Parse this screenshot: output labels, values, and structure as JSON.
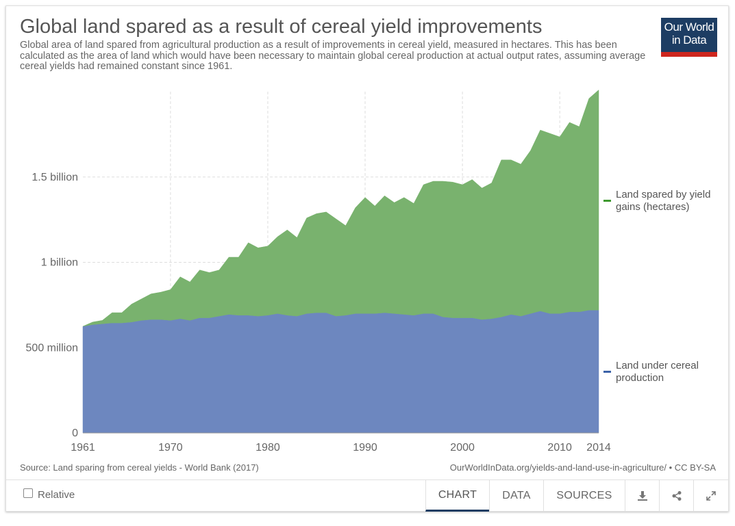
{
  "header": {
    "title": "Global land spared as a result of cereal yield improvements",
    "subtitle": "Global area of land spared from agricultural production as a result of improvements in cereal yield, measured in hectares. This has been calculated as the area of land which would have been necessary to maintain global cereal production at actual output rates, assuming average cereal yields had remained constant since 1961.",
    "logo_line1": "Our World",
    "logo_line2": "in Data"
  },
  "footer": {
    "source": "Source: Land sparing from cereal yields - World Bank (2017)",
    "url": "OurWorldInData.org/yields-and-land-use-in-agriculture/ • CC BY-SA"
  },
  "controls": {
    "relative_label": "Relative",
    "tabs": [
      "CHART",
      "DATA",
      "SOURCES"
    ],
    "active_tab": "CHART",
    "icons": [
      "download-icon",
      "share-icon",
      "expand-icon"
    ]
  },
  "chart_data": {
    "type": "area",
    "stacked": true,
    "x": [
      1961,
      1962,
      1963,
      1964,
      1965,
      1966,
      1967,
      1968,
      1969,
      1970,
      1971,
      1972,
      1973,
      1974,
      1975,
      1976,
      1977,
      1978,
      1979,
      1980,
      1981,
      1982,
      1983,
      1984,
      1985,
      1986,
      1987,
      1988,
      1989,
      1990,
      1991,
      1992,
      1993,
      1994,
      1995,
      1996,
      1997,
      1998,
      1999,
      2000,
      2001,
      2002,
      2003,
      2004,
      2005,
      2006,
      2007,
      2008,
      2009,
      2010,
      2011,
      2012,
      2013,
      2014
    ],
    "xlim": [
      1961,
      2014
    ],
    "xticks": [
      "1961",
      "1970",
      "1980",
      "1990",
      "2000",
      "2010",
      "2014"
    ],
    "ylim": [
      0,
      2000000000
    ],
    "yticks": [
      {
        "value": 0,
        "label": "0"
      },
      {
        "value": 500000000,
        "label": "500 million"
      },
      {
        "value": 1000000000,
        "label": "1 billion"
      },
      {
        "value": 1500000000,
        "label": "1.5 billion"
      }
    ],
    "grid": true,
    "legend_position": "right",
    "series": [
      {
        "name": "Land under cereal production",
        "color": "#6d87bf",
        "legend_color": "#3b62a8",
        "values": [
          625,
          635,
          640,
          645,
          645,
          650,
          660,
          665,
          665,
          660,
          670,
          660,
          675,
          675,
          685,
          695,
          690,
          690,
          685,
          690,
          700,
          690,
          685,
          700,
          705,
          705,
          685,
          690,
          700,
          700,
          700,
          705,
          700,
          695,
          690,
          700,
          700,
          680,
          675,
          675,
          675,
          665,
          670,
          680,
          695,
          685,
          700,
          715,
          700,
          700,
          710,
          710,
          720,
          720
        ]
      },
      {
        "name": "Land spared by yield gains (hectares)",
        "color": "#79b26e",
        "legend_color": "#3e9a2f",
        "values": [
          0,
          15,
          20,
          60,
          60,
          105,
          125,
          150,
          160,
          180,
          245,
          225,
          280,
          265,
          270,
          335,
          340,
          425,
          400,
          405,
          450,
          500,
          460,
          560,
          580,
          590,
          570,
          525,
          620,
          680,
          630,
          685,
          650,
          685,
          655,
          755,
          775,
          795,
          795,
          780,
          810,
          770,
          795,
          920,
          905,
          890,
          955,
          1060,
          1055,
          1035,
          1110,
          1085,
          1240,
          1290
        ]
      }
    ],
    "value_unit_multiplier": 1000000
  }
}
